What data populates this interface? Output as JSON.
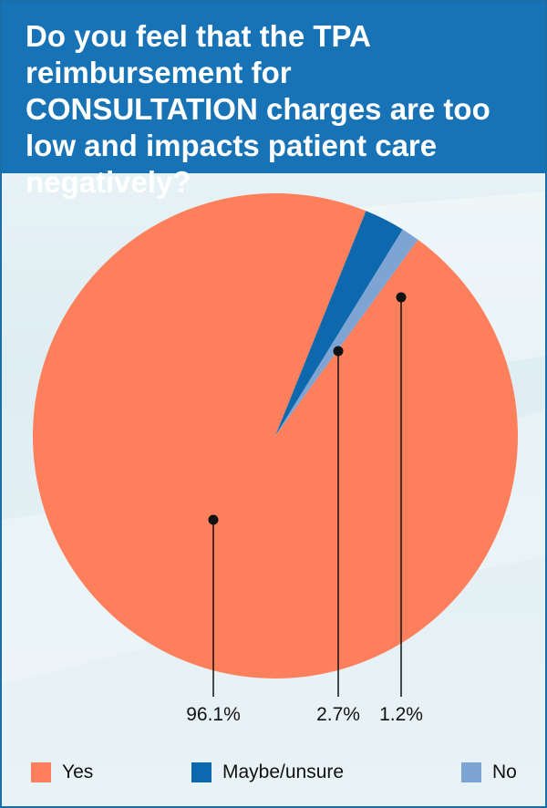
{
  "title": "Do you feel that the TPA reimbursement for CONSULTATION charges are too low and impacts patient care negatively?",
  "colors": {
    "header": "#1773b5",
    "yes": "#fd7f5c",
    "maybe": "#0e68ad",
    "no": "#7da4d3"
  },
  "chart_data": {
    "type": "pie",
    "title": "Do you feel that the TPA reimbursement for CONSULTATION charges are too low and impacts patient care negatively?",
    "slices": [
      {
        "label": "Yes",
        "value": 96.1,
        "display": "96.1%",
        "color": "#fd7f5c"
      },
      {
        "label": "Maybe/unsure",
        "value": 2.7,
        "display": "2.7%",
        "color": "#0e68ad"
      },
      {
        "label": "No",
        "value": 1.2,
        "display": "1.2%",
        "color": "#7da4d3"
      }
    ],
    "legend_position": "bottom"
  },
  "legend": [
    {
      "label": "Yes",
      "color": "#fd7f5c"
    },
    {
      "label": "Maybe/unsure",
      "color": "#0e68ad"
    },
    {
      "label": "No",
      "color": "#7da4d3"
    }
  ]
}
